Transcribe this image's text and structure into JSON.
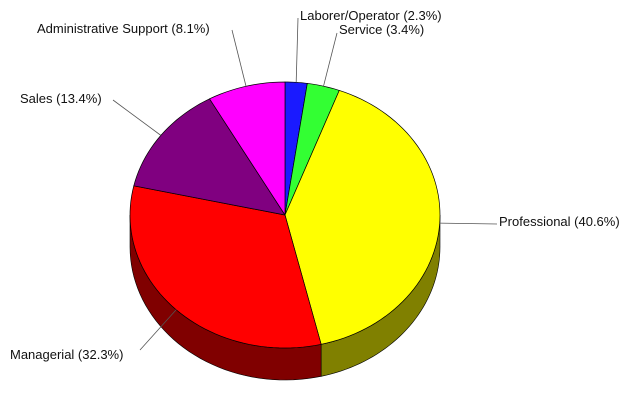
{
  "chart_data": {
    "type": "pie",
    "categories": [
      "Laborer/Operator",
      "Service",
      "Professional",
      "Managerial",
      "Sales",
      "Administrative Support"
    ],
    "values": [
      2.3,
      3.4,
      40.6,
      32.3,
      13.4,
      8.1
    ],
    "labels": [
      "Laborer/Operator (2.3%)",
      "Service (3.4%)",
      "Professional (40.6%)",
      "Managerial (32.3%)",
      "Sales (13.4%)",
      "Administrative Support (8.1%)"
    ],
    "colors": [
      "#1a1aff",
      "#33ff33",
      "#ffff00",
      "#ff0000",
      "#800080",
      "#ff00ff"
    ],
    "title": "",
    "style": "3d"
  }
}
